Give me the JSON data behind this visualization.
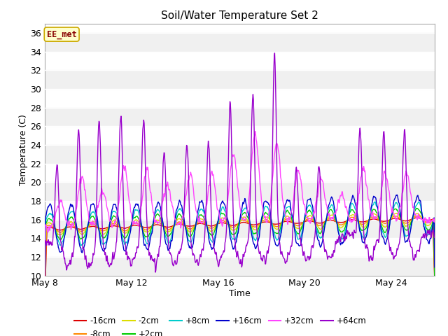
{
  "title": "Soil/Water Temperature Set 2",
  "xlabel": "Time",
  "ylabel": "Temperature (C)",
  "ylim": [
    10,
    37
  ],
  "yticks": [
    10,
    12,
    14,
    16,
    18,
    20,
    22,
    24,
    26,
    28,
    30,
    32,
    34,
    36
  ],
  "fig_bg": "#ffffff",
  "plot_bg": "#ffffff",
  "stripe_colors": [
    "#f0f0f0",
    "#ffffff"
  ],
  "annotation_text": "EE_met",
  "annotation_bg": "#ffffcc",
  "annotation_border": "#ccaa00",
  "annotation_text_color": "#880000",
  "series_colors": {
    "-16cm": "#dd0000",
    "-8cm": "#ff8800",
    "-2cm": "#dddd00",
    "+2cm": "#00cc00",
    "+8cm": "#00cccc",
    "+16cm": "#0000cc",
    "+32cm": "#ff44ff",
    "+64cm": "#9900cc"
  },
  "xtick_labels": [
    "May 8",
    "May 12",
    "May 16",
    "May 20",
    "May 24"
  ],
  "xtick_positions": [
    0,
    4,
    8,
    12,
    16
  ],
  "n_days": 18,
  "n_per_day": 48
}
